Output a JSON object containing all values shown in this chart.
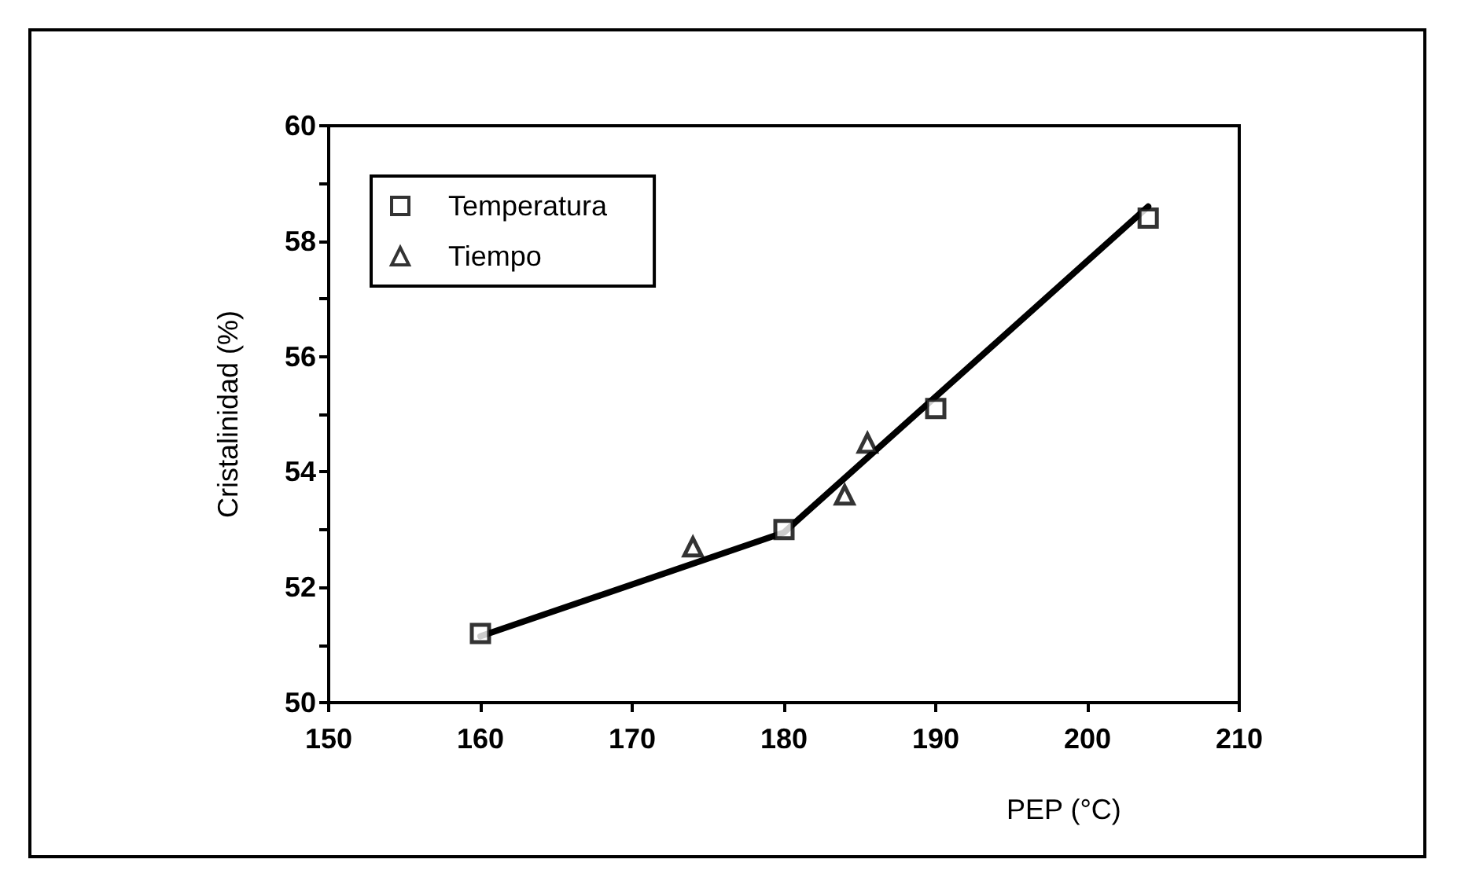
{
  "chart_data": {
    "type": "scatter",
    "xlabel": "PEP (°C)",
    "ylabel": "Cristalinidad (%)",
    "xlim": [
      150,
      210
    ],
    "xticks": [
      150,
      160,
      170,
      180,
      190,
      200,
      210
    ],
    "ylim": [
      50,
      60
    ],
    "yticks": [
      50,
      {
        "value": 51,
        "label": null
      },
      52,
      {
        "value": 53,
        "label": null
      },
      54,
      {
        "value": 55,
        "label": null
      },
      56,
      {
        "value": 57,
        "label": null
      },
      58,
      {
        "value": 59,
        "label": null
      },
      60
    ],
    "grid": false,
    "legend": "top left",
    "series": [
      {
        "name": "Temperatura",
        "color": "#000000",
        "marker": "square",
        "x": [
          160,
          180,
          190,
          204
        ],
        "values": [
          51.2,
          53.0,
          55.1,
          58.4
        ]
      },
      {
        "name": "Tiempo",
        "color": "#000000",
        "marker": "triangle",
        "x": [
          174,
          184,
          185.5
        ],
        "values": [
          52.7,
          53.6,
          54.5
        ]
      },
      {
        "type": "line",
        "color": "#000000",
        "marker": "none",
        "line_style": "solid",
        "x": [
          160,
          180,
          204
        ],
        "values": [
          51.15,
          52.95,
          58.6
        ]
      }
    ]
  }
}
